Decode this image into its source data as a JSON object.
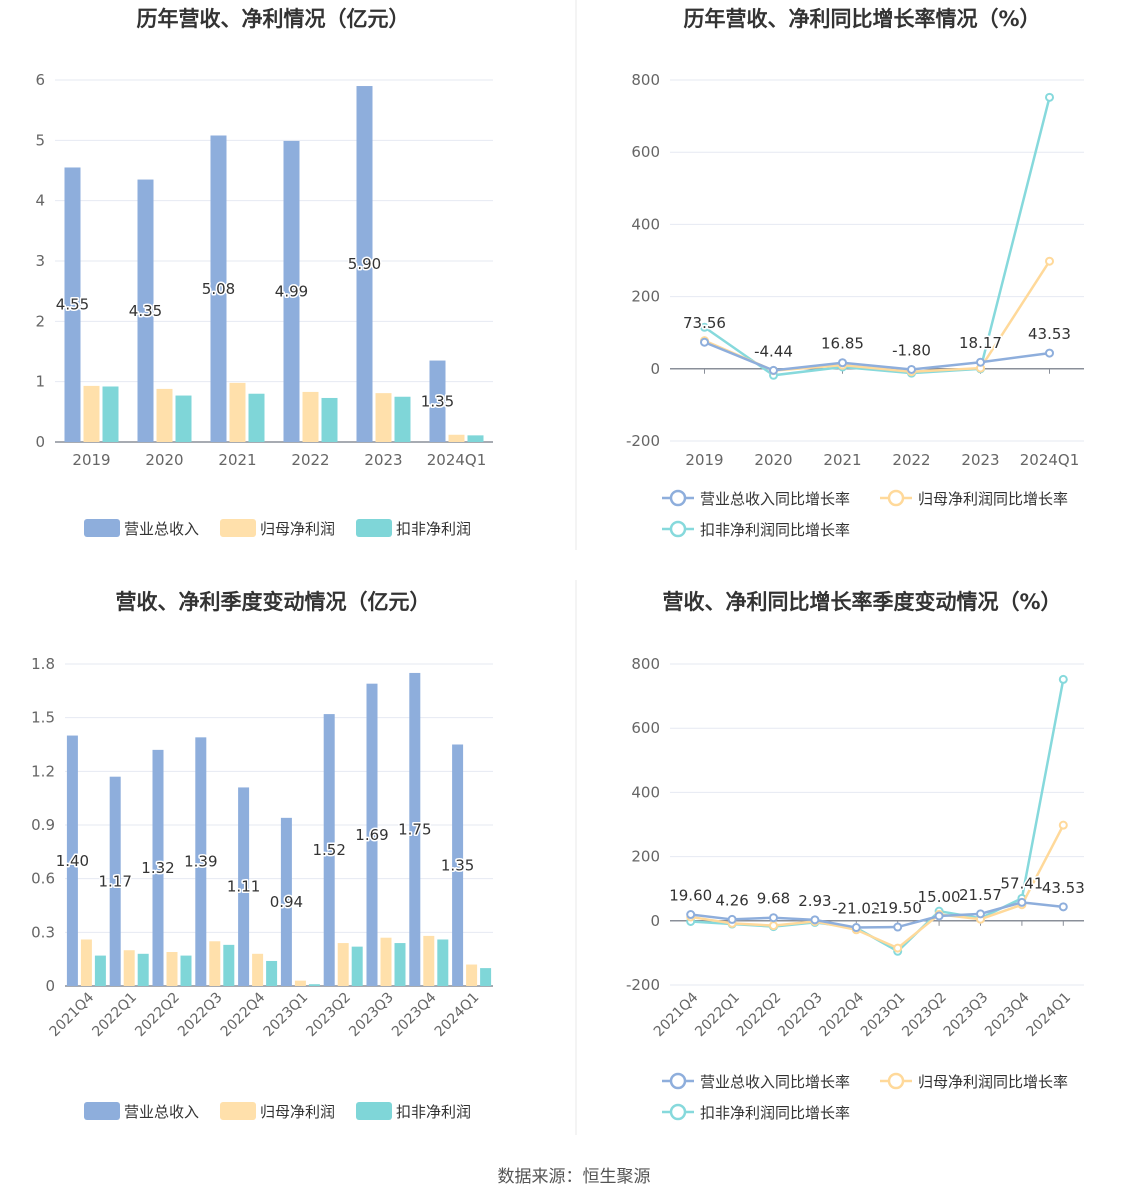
{
  "source": "数据来源：恒生聚源",
  "colors": {
    "revenue": "#8eaedc",
    "parent_profit": "#ffe0ab",
    "deducted_profit": "#7fd6d8",
    "revenue_line": "#8eaedc",
    "parent_line": "#ffd99a",
    "deducted_line": "#86d9dc",
    "grid": "#e6e9f2",
    "axis": "#8a8f99",
    "divider": "#e8e8e8"
  },
  "chart_data": [
    {
      "id": "annual_amount",
      "type": "bar",
      "title": "历年营收、净利情况（亿元）",
      "categories": [
        "2019",
        "2020",
        "2021",
        "2022",
        "2023",
        "2024Q1"
      ],
      "ylim": [
        0,
        6
      ],
      "yticks": [
        0,
        1,
        2,
        3,
        4,
        5,
        6
      ],
      "ytick_labels": [
        "0",
        "1",
        "2",
        "3",
        "4",
        "5",
        "6"
      ],
      "series": [
        {
          "name": "营业总收入",
          "values": [
            4.55,
            4.35,
            5.08,
            4.99,
            5.9,
            1.35
          ],
          "labels": [
            "4.55",
            "4.35",
            "5.08",
            "4.99",
            "5.90",
            "1.35"
          ]
        },
        {
          "name": "归母净利润",
          "values": [
            0.93,
            0.88,
            0.98,
            0.83,
            0.81,
            0.12
          ]
        },
        {
          "name": "扣非净利润",
          "values": [
            0.92,
            0.77,
            0.8,
            0.73,
            0.75,
            0.11
          ]
        }
      ],
      "legend_position": "bottom",
      "grid": true
    },
    {
      "id": "annual_growth",
      "type": "line",
      "title": "历年营收、净利同比增长率情况（%）",
      "categories": [
        "2019",
        "2020",
        "2021",
        "2022",
        "2023",
        "2024Q1"
      ],
      "ylim": [
        -200,
        800
      ],
      "yticks": [
        -200,
        0,
        200,
        400,
        600,
        800
      ],
      "ytick_labels": [
        "-200",
        "0",
        "200",
        "400",
        "600",
        "800"
      ],
      "series": [
        {
          "name": "营业总收入同比增长率",
          "values": [
            73.56,
            -4.44,
            16.85,
            -1.8,
            18.17,
            43.53
          ],
          "labels": [
            "73.56",
            "-4.44",
            "16.85",
            "-1.80",
            "18.17",
            "43.53"
          ]
        },
        {
          "name": "归母净利润同比增长率",
          "values": [
            78,
            -5,
            10,
            -8,
            2,
            298
          ]
        },
        {
          "name": "扣非净利润同比增长率",
          "values": [
            115,
            -18,
            5,
            -12,
            0,
            752
          ]
        }
      ],
      "legend_position": "bottom",
      "grid": true
    },
    {
      "id": "quarterly_amount",
      "type": "bar",
      "title": "营收、净利季度变动情况（亿元）",
      "categories": [
        "2021Q4",
        "2022Q1",
        "2022Q2",
        "2022Q3",
        "2022Q4",
        "2023Q1",
        "2023Q2",
        "2023Q3",
        "2023Q4",
        "2024Q1"
      ],
      "ylim": [
        0,
        1.8
      ],
      "yticks": [
        0,
        0.3,
        0.6,
        0.9,
        1.2,
        1.5,
        1.8
      ],
      "ytick_labels": [
        "0",
        "0.3",
        "0.6",
        "0.9",
        "1.2",
        "1.5",
        "1.8"
      ],
      "series": [
        {
          "name": "营业总收入",
          "values": [
            1.4,
            1.17,
            1.32,
            1.39,
            1.11,
            0.94,
            1.52,
            1.69,
            1.75,
            1.35
          ],
          "labels": [
            "1.40",
            "1.17",
            "1.32",
            "1.39",
            "1.11",
            "0.94",
            "1.52",
            "1.69",
            "1.75",
            "1.35"
          ]
        },
        {
          "name": "归母净利润",
          "values": [
            0.26,
            0.2,
            0.19,
            0.25,
            0.18,
            0.03,
            0.24,
            0.27,
            0.28,
            0.12
          ]
        },
        {
          "name": "扣非净利润",
          "values": [
            0.17,
            0.18,
            0.17,
            0.23,
            0.14,
            0.01,
            0.22,
            0.24,
            0.26,
            0.1
          ]
        }
      ],
      "legend_position": "bottom",
      "grid": true
    },
    {
      "id": "quarterly_growth",
      "type": "line",
      "title": "营收、净利同比增长率季度变动情况（%）",
      "categories": [
        "2021Q4",
        "2022Q1",
        "2022Q2",
        "2022Q3",
        "2022Q4",
        "2023Q1",
        "2023Q2",
        "2023Q3",
        "2023Q4",
        "2024Q1"
      ],
      "ylim": [
        -200,
        800
      ],
      "yticks": [
        -200,
        0,
        200,
        400,
        600,
        800
      ],
      "ytick_labels": [
        "-200",
        "0",
        "200",
        "400",
        "600",
        "800"
      ],
      "series": [
        {
          "name": "营业总收入同比增长率",
          "values": [
            19.6,
            4.26,
            9.68,
            2.93,
            -21.02,
            -19.5,
            15.0,
            21.57,
            57.41,
            43.53
          ],
          "labels": [
            "19.60",
            "4.26",
            "9.68",
            "2.93",
            "-21.02",
            "-19.50",
            "15.00",
            "21.57",
            "57.41",
            "43.53"
          ]
        },
        {
          "name": "归母净利润同比增长率",
          "values": [
            12,
            -8,
            -15,
            -2,
            -28,
            -85,
            20,
            5,
            50,
            298
          ]
        },
        {
          "name": "扣非净利润同比增长率",
          "values": [
            -2,
            -10,
            -18,
            -5,
            -22,
            -95,
            30,
            8,
            70,
            752
          ]
        }
      ],
      "legend_position": "bottom",
      "grid": true
    }
  ]
}
